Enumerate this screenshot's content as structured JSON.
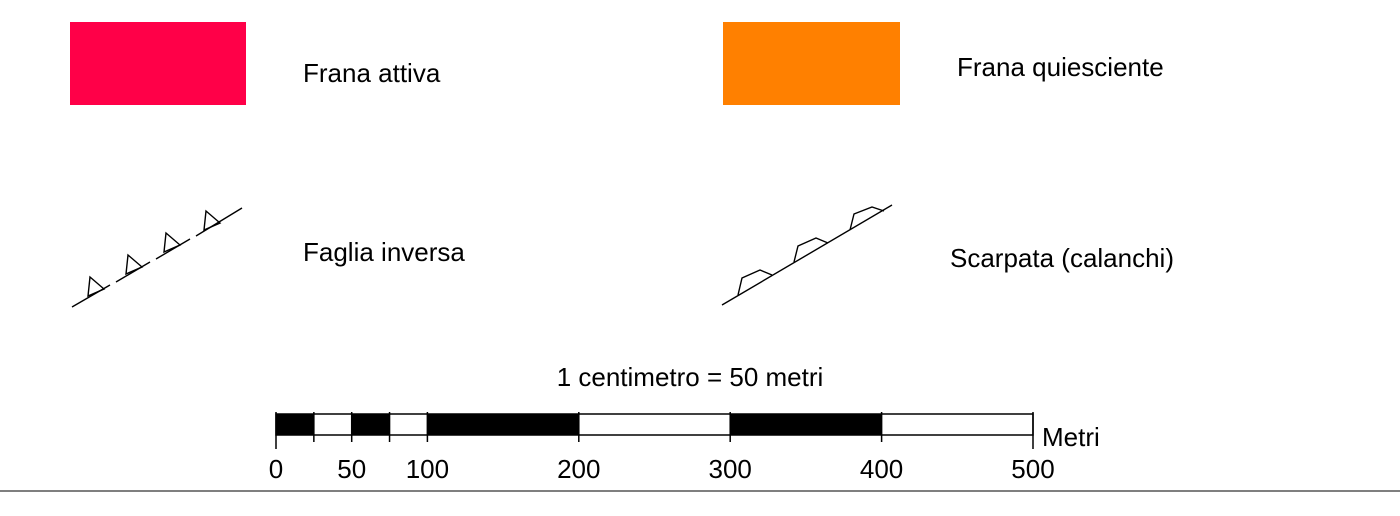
{
  "legend": {
    "items": [
      {
        "label": "Frana attiva",
        "symbol": "fill-swatch",
        "color": "#ff0048"
      },
      {
        "label": "Frana quiesciente",
        "symbol": "fill-swatch",
        "color": "#ff8000"
      },
      {
        "label": "Faglia inversa",
        "symbol": "reverse-fault-line-icon"
      },
      {
        "label": "Scarpata (calanchi)",
        "symbol": "escarpment-line-icon"
      }
    ]
  },
  "scale": {
    "caption": "1 centimetro = 50 metri",
    "unit": "Metri",
    "max_value": 500,
    "segments": [
      {
        "from": 0,
        "to": 25,
        "fill": "black"
      },
      {
        "from": 25,
        "to": 50,
        "fill": "white"
      },
      {
        "from": 50,
        "to": 75,
        "fill": "black"
      },
      {
        "from": 75,
        "to": 100,
        "fill": "white"
      },
      {
        "from": 100,
        "to": 200,
        "fill": "black"
      },
      {
        "from": 200,
        "to": 300,
        "fill": "white"
      },
      {
        "from": 300,
        "to": 400,
        "fill": "black"
      },
      {
        "from": 400,
        "to": 500,
        "fill": "white"
      }
    ],
    "tick_labels": [
      {
        "value": 0,
        "text": "0"
      },
      {
        "value": 50,
        "text": "50"
      },
      {
        "value": 100,
        "text": "100"
      },
      {
        "value": 200,
        "text": "200"
      },
      {
        "value": 300,
        "text": "300"
      },
      {
        "value": 400,
        "text": "400"
      },
      {
        "value": 500,
        "text": "500"
      }
    ]
  }
}
